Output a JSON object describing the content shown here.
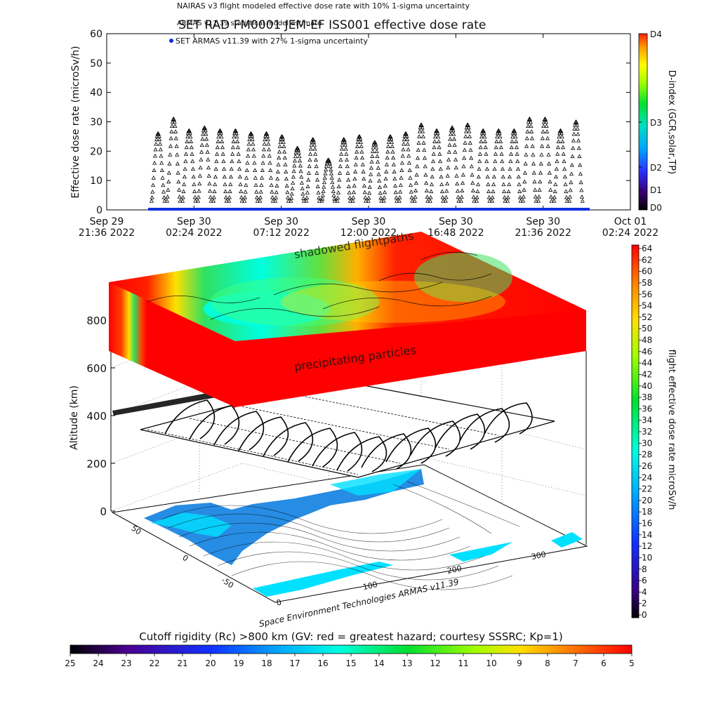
{
  "header": {
    "legend_line1": "NAIRAS v3 flight modeled effective dose rate with 10% 1-sigma uncertainty",
    "legend_line2": "ARMAS v11.39 statistical model estimate",
    "legend_line3": "SET ARMAS v11.39 with 27% 1-sigma uncertainty",
    "title": "SET RAD FM0001 JEM-EF ISS001 effective dose rate"
  },
  "top_chart": {
    "ylabel": "Effective dose rate (microSv/h)",
    "y_ticks": [
      "0",
      "10",
      "20",
      "30",
      "40",
      "50",
      "60"
    ],
    "x_ticks": [
      {
        "l1": "Sep 29",
        "l2": "21:36 2022"
      },
      {
        "l1": "Sep 30",
        "l2": "02:24 2022"
      },
      {
        "l1": "Sep 30",
        "l2": "07:12 2022"
      },
      {
        "l1": "Sep 30",
        "l2": "12:00 2022"
      },
      {
        "l1": "Sep 30",
        "l2": "16:48 2022"
      },
      {
        "l1": "Sep 30",
        "l2": "21:36 2022"
      },
      {
        "l1": "Oct 01",
        "l2": "02:24 2022"
      }
    ],
    "dindex_label": "D-index (GCR,solar,TP)",
    "dindex_ticks": [
      "D4",
      "D3",
      "D2",
      "D1",
      "D0"
    ],
    "colors": {
      "set": "#1030e0",
      "marker": "#000000"
    }
  },
  "scene": {
    "label_shadowed": "shadowed flightpaths",
    "label_precip": "precipitating particles",
    "zlabel": "Altitude (km)",
    "z_ticks": [
      "0",
      "200",
      "400",
      "600",
      "800"
    ],
    "lat_ticks": [
      "50",
      "0",
      "-50"
    ],
    "lon_ticks": [
      "0",
      "100",
      "200",
      "300"
    ],
    "credit": "Space Environment Technologies ARMAS v11.39"
  },
  "right_bar": {
    "label": "flight effective dose rate microSv/h",
    "ticks": [
      "64",
      "62",
      "60",
      "58",
      "56",
      "54",
      "52",
      "50",
      "48",
      "46",
      "44",
      "42",
      "40",
      "38",
      "36",
      "34",
      "32",
      "30",
      "28",
      "26",
      "24",
      "22",
      "20",
      "18",
      "16",
      "14",
      "12",
      "10",
      "8",
      "6",
      "4",
      "2",
      "0"
    ]
  },
  "bottom_bar": {
    "title": "Cutoff rigidity (Rc) >800 km (GV: red = greatest hazard; courtesy SSSRC; Kp=1)",
    "ticks": [
      "25",
      "24",
      "23",
      "22",
      "21",
      "20",
      "19",
      "18",
      "17",
      "16",
      "15",
      "14",
      "13",
      "12",
      "11",
      "10",
      "9",
      "8",
      "7",
      "6",
      "5"
    ]
  },
  "chart_data": [
    {
      "type": "scatter",
      "title": "SET RAD FM0001 JEM-EF ISS001 effective dose rate",
      "xlabel": "",
      "ylabel": "Effective dose rate (microSv/h)",
      "ylim": [
        0,
        60
      ],
      "x_range": [
        "2022-09-29 21:36",
        "2022-10-01 02:24"
      ],
      "x_start": "2022-09-30 00:00",
      "x_end": "2022-09-30 23:50",
      "orbit_peaks_microSv_h": [
        26,
        31,
        27,
        28,
        27,
        27,
        26,
        26,
        25,
        21,
        24,
        17,
        24,
        25,
        23,
        25,
        26,
        29,
        27,
        28,
        29,
        27,
        27,
        27,
        31,
        31,
        27,
        30
      ],
      "baseline_microSv_h": 3,
      "legend": [
        "NAIRAS v3 flight modeled effective dose rate with 10% 1-sigma uncertainty",
        "ARMAS v11.39 statistical model estimate",
        "SET ARMAS v11.39 with 27% 1-sigma uncertainty"
      ],
      "y2_label": "D-index (GCR,solar,TP)",
      "y2_ticks": [
        "D0",
        "D1",
        "D2",
        "D3",
        "D4"
      ]
    },
    {
      "type": "heatmap",
      "title": "",
      "zlabel": "Altitude (km)",
      "z_range": [
        0,
        800
      ],
      "colorbar_label": "flight effective dose rate microSv/h",
      "colorbar_range": [
        0,
        64
      ],
      "bottom_colorbar_label": "Cutoff rigidity (Rc) >800 km (GV: red = greatest hazard; courtesy SSSRC; Kp=1)",
      "bottom_colorbar_range": [
        25,
        5
      ],
      "annotations": [
        "shadowed flightpaths",
        "precipitating particles"
      ]
    }
  ]
}
